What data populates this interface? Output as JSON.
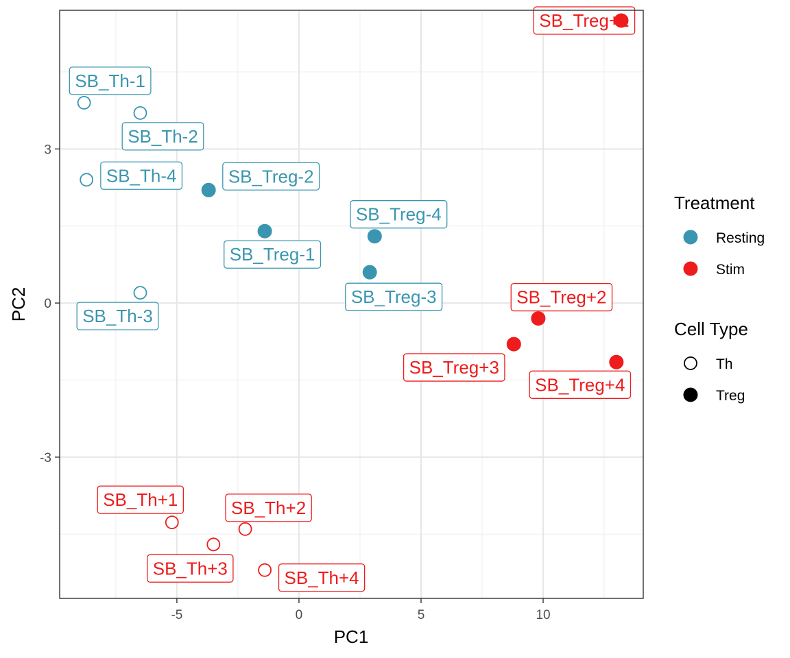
{
  "chart_data": {
    "type": "scatter",
    "xlabel": "PC1",
    "ylabel": "PC2",
    "xlim": [
      -9.8,
      14.1
    ],
    "ylim": [
      -5.75,
      5.7
    ],
    "x_ticks": [
      -5,
      0,
      5,
      10
    ],
    "y_ticks": [
      -3,
      0,
      3
    ],
    "grid": true,
    "legend_position": "right",
    "legends": [
      {
        "title": "Treatment",
        "entries": [
          {
            "label": "Resting",
            "color": "#3A96B0",
            "shape": "filled-circle"
          },
          {
            "label": "Stim",
            "color": "#EE1C1C",
            "shape": "filled-circle"
          }
        ]
      },
      {
        "title": "Cell Type",
        "entries": [
          {
            "label": "Th",
            "color": "#000000",
            "shape": "open-circle"
          },
          {
            "label": "Treg",
            "color": "#000000",
            "shape": "filled-circle"
          }
        ]
      }
    ],
    "points": [
      {
        "label": "SB_Th-1",
        "x": -8.8,
        "y": 3.9,
        "treatment": "Resting",
        "cell_type": "Th"
      },
      {
        "label": "SB_Th-2",
        "x": -6.5,
        "y": 3.7,
        "treatment": "Resting",
        "cell_type": "Th"
      },
      {
        "label": "SB_Th-4",
        "x": -8.7,
        "y": 2.4,
        "treatment": "Resting",
        "cell_type": "Th"
      },
      {
        "label": "SB_Th-3",
        "x": -6.5,
        "y": 0.2,
        "treatment": "Resting",
        "cell_type": "Th"
      },
      {
        "label": "SB_Treg-2",
        "x": -3.7,
        "y": 2.2,
        "treatment": "Resting",
        "cell_type": "Treg"
      },
      {
        "label": "SB_Treg-1",
        "x": -1.4,
        "y": 1.4,
        "treatment": "Resting",
        "cell_type": "Treg"
      },
      {
        "label": "SB_Treg-4",
        "x": 3.1,
        "y": 1.3,
        "treatment": "Resting",
        "cell_type": "Treg"
      },
      {
        "label": "SB_Treg-3",
        "x": 2.9,
        "y": 0.6,
        "treatment": "Resting",
        "cell_type": "Treg"
      },
      {
        "label": "SB_Treg+1",
        "x": 13.2,
        "y": 5.5,
        "treatment": "Stim",
        "cell_type": "Treg"
      },
      {
        "label": "SB_Treg+2",
        "x": 9.8,
        "y": -0.3,
        "treatment": "Stim",
        "cell_type": "Treg"
      },
      {
        "label": "SB_Treg+3",
        "x": 8.8,
        "y": -0.8,
        "treatment": "Stim",
        "cell_type": "Treg"
      },
      {
        "label": "SB_Treg+4",
        "x": 13.0,
        "y": -1.15,
        "treatment": "Stim",
        "cell_type": "Treg"
      },
      {
        "label": "SB_Th+1",
        "x": -5.2,
        "y": -4.27,
        "treatment": "Stim",
        "cell_type": "Th"
      },
      {
        "label": "SB_Th+2",
        "x": -2.2,
        "y": -4.4,
        "treatment": "Stim",
        "cell_type": "Th"
      },
      {
        "label": "SB_Th+3",
        "x": -3.5,
        "y": -4.7,
        "treatment": "Stim",
        "cell_type": "Th"
      },
      {
        "label": "SB_Th+4",
        "x": -1.4,
        "y": -5.2,
        "treatment": "Stim",
        "cell_type": "Th"
      }
    ]
  }
}
